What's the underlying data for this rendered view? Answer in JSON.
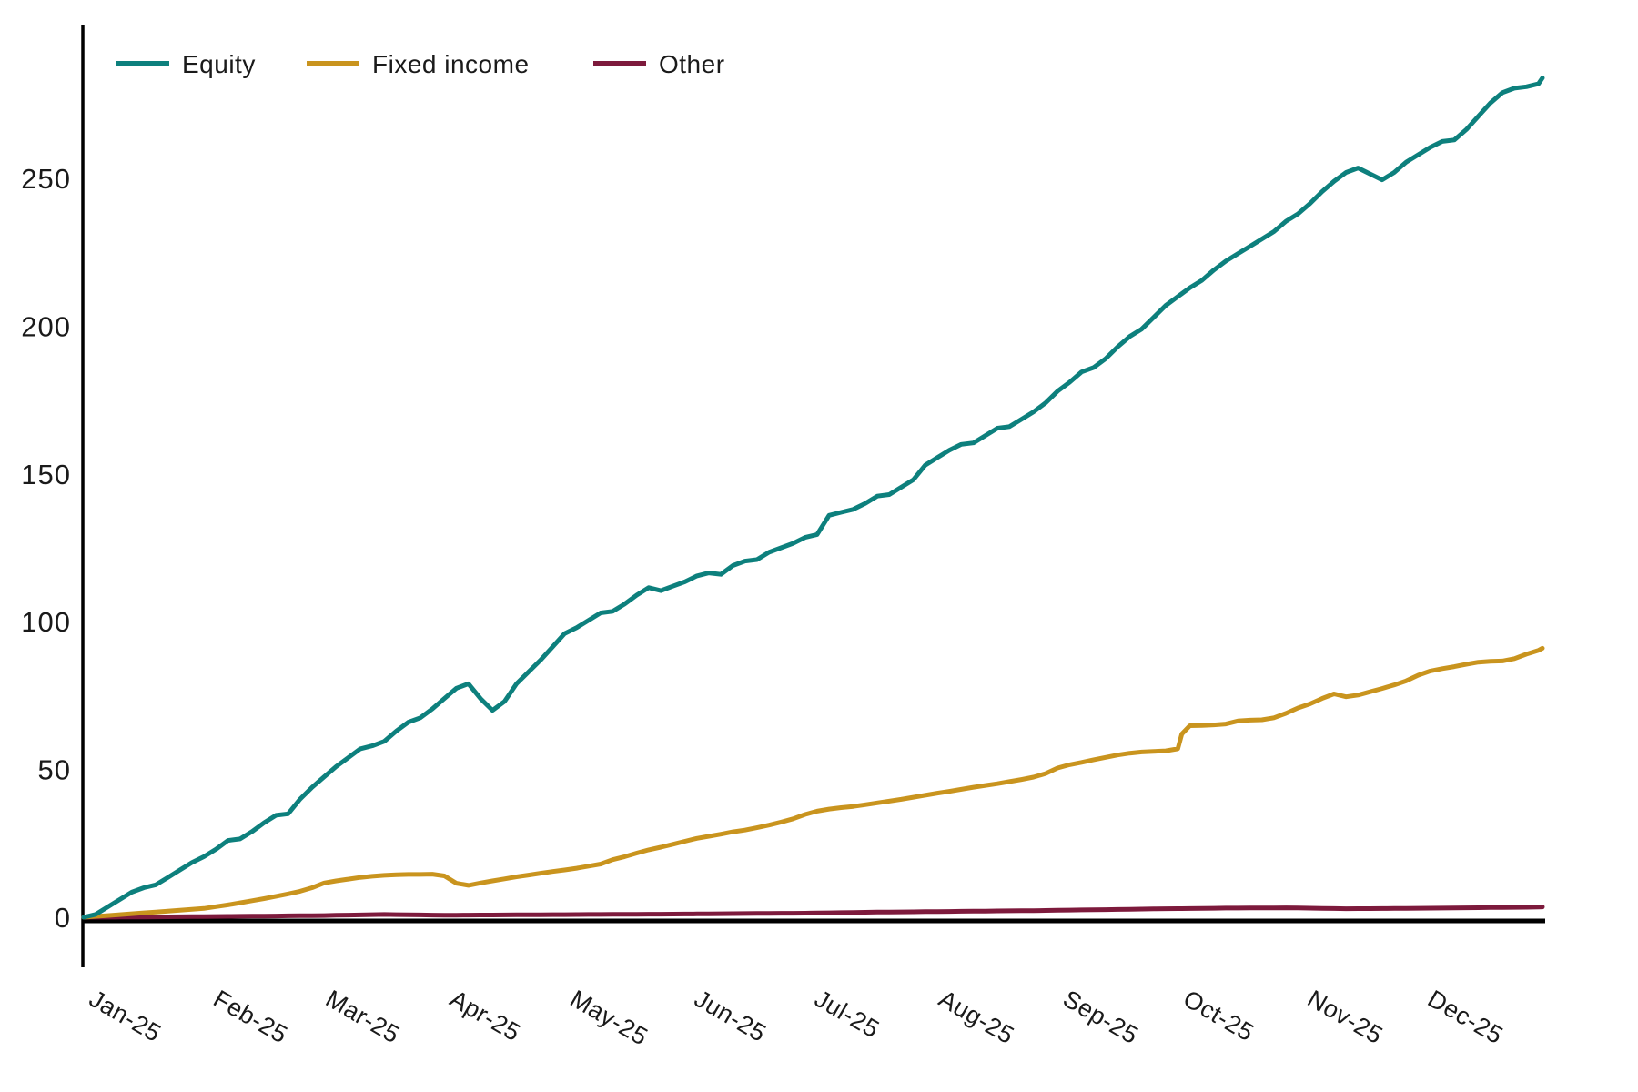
{
  "chart_data": {
    "type": "line",
    "title": "",
    "xlabel": "",
    "ylabel": "",
    "grid": false,
    "legend_position": "top-left",
    "ylim": [
      0,
      290
    ],
    "y_ticks": [
      0,
      50,
      100,
      150,
      200,
      250
    ],
    "x_tick_labels": [
      "Jan-25",
      "Feb-25",
      "Mar-25",
      "Apr-25",
      "May-25",
      "Jun-25",
      "Jul-25",
      "Aug-25",
      "Sep-25",
      "Oct-25",
      "Nov-25",
      "Dec-25"
    ],
    "x_unit": "day_of_year_2025",
    "month_start_days": [
      0,
      31,
      59,
      90,
      120,
      151,
      181,
      212,
      243,
      273,
      304,
      334
    ],
    "days": [
      0,
      3,
      6,
      9,
      12,
      15,
      18,
      21,
      24,
      27,
      30,
      33,
      36,
      39,
      42,
      45,
      48,
      51,
      54,
      57,
      60,
      63,
      66,
      69,
      72,
      75,
      78,
      81,
      84,
      87,
      90,
      93,
      96,
      99,
      102,
      105,
      108,
      111,
      114,
      117,
      120,
      123,
      126,
      129,
      132,
      135,
      138,
      141,
      144,
      147,
      150,
      153,
      156,
      159,
      162,
      165,
      168,
      171,
      174,
      177,
      180,
      183,
      186,
      189,
      192,
      195,
      198,
      201,
      204,
      207,
      210,
      213,
      216,
      219,
      222,
      225,
      228,
      231,
      234,
      237,
      240,
      243,
      246,
      249,
      252,
      255,
      258,
      261,
      264,
      267,
      270,
      273,
      274,
      276,
      279,
      282,
      285,
      288,
      291,
      294,
      297,
      300,
      303,
      306,
      309,
      312,
      315,
      318,
      321,
      324,
      327,
      330,
      333,
      336,
      339,
      342,
      345,
      348,
      351,
      354,
      357,
      360,
      363,
      364
    ],
    "series": [
      {
        "name": "Equity",
        "color": "#0d807d",
        "values": [
          0,
          1,
          3.5,
          6,
          8.5,
          10,
          11,
          13.5,
          16,
          18.5,
          20.5,
          23,
          26,
          26.5,
          29,
          32,
          34.5,
          35,
          40,
          44,
          47.5,
          51,
          54,
          57,
          58,
          59.5,
          63,
          66,
          67.5,
          70.5,
          74,
          77.5,
          79,
          74,
          70,
          73,
          79,
          83,
          87,
          91.5,
          96,
          98,
          100.5,
          103,
          103.5,
          106,
          109,
          111.5,
          110.5,
          112,
          113.5,
          115.5,
          116.5,
          116,
          119,
          120.5,
          121,
          123.5,
          125,
          126.5,
          128.5,
          129.5,
          136,
          137,
          138,
          140,
          142.5,
          143,
          145.5,
          148,
          153,
          155.5,
          158,
          160,
          160.5,
          163,
          165.5,
          166,
          168.5,
          171,
          174,
          178,
          181,
          184.5,
          186,
          189,
          193,
          196.5,
          199,
          203,
          207,
          210,
          211,
          213,
          215.5,
          219,
          222,
          224.5,
          227,
          229.5,
          232,
          235.5,
          238,
          241.5,
          245.5,
          249,
          252,
          253.5,
          251.5,
          249.5,
          252,
          255.5,
          258,
          260.5,
          262.5,
          263,
          266.5,
          271,
          275.5,
          279,
          280.5,
          281,
          282,
          284
        ]
      },
      {
        "name": "Fixed income",
        "color": "#c9941e",
        "values": [
          0,
          0.3,
          0.6,
          0.9,
          1.2,
          1.5,
          1.8,
          2.1,
          2.4,
          2.7,
          3,
          3.6,
          4.2,
          4.9,
          5.6,
          6.3,
          7.1,
          7.9,
          8.8,
          10,
          11.6,
          12.3,
          12.9,
          13.5,
          13.9,
          14.2,
          14.4,
          14.5,
          14.5,
          14.6,
          14,
          11.5,
          10.8,
          11.6,
          12.3,
          13,
          13.7,
          14.3,
          14.9,
          15.5,
          16,
          16.6,
          17.3,
          18,
          19.5,
          20.5,
          21.7,
          22.8,
          23.7,
          24.7,
          25.7,
          26.7,
          27.4,
          28.1,
          28.9,
          29.5,
          30.3,
          31.2,
          32.2,
          33.3,
          34.8,
          35.9,
          36.6,
          37.1,
          37.5,
          38.1,
          38.7,
          39.3,
          39.9,
          40.6,
          41.3,
          42,
          42.6,
          43.3,
          44,
          44.6,
          45.2,
          45.9,
          46.6,
          47.4,
          48.6,
          50.5,
          51.6,
          52.4,
          53.3,
          54.1,
          54.9,
          55.5,
          55.9,
          56.1,
          56.3,
          57,
          62,
          64.8,
          64.9,
          65.1,
          65.4,
          66.4,
          66.7,
          66.8,
          67.5,
          69,
          70.8,
          72.2,
          74,
          75.6,
          74.6,
          75.2,
          76.3,
          77.4,
          78.6,
          80,
          81.9,
          83.3,
          84.1,
          84.8,
          85.6,
          86.3,
          86.6,
          86.7,
          87.5,
          89,
          90.3,
          91
        ]
      },
      {
        "name": "Other",
        "color": "#7d1a3c",
        "values": [
          0,
          0.02,
          0.04,
          0.06,
          0.08,
          0.1,
          0.13,
          0.16,
          0.19,
          0.22,
          0.25,
          0.28,
          0.31,
          0.34,
          0.37,
          0.4,
          0.44,
          0.48,
          0.52,
          0.56,
          0.6,
          0.67,
          0.74,
          0.81,
          0.88,
          0.95,
          0.9,
          0.85,
          0.8,
          0.75,
          0.7,
          0.72,
          0.74,
          0.76,
          0.78,
          0.8,
          0.82,
          0.84,
          0.86,
          0.88,
          0.9,
          0.92,
          0.94,
          0.96,
          0.98,
          1,
          1.02,
          1.04,
          1.06,
          1.08,
          1.1,
          1.13,
          1.16,
          1.19,
          1.22,
          1.25,
          1.28,
          1.31,
          1.34,
          1.37,
          1.4,
          1.46,
          1.52,
          1.58,
          1.64,
          1.7,
          1.74,
          1.78,
          1.82,
          1.86,
          1.9,
          1.94,
          1.98,
          2.02,
          2.06,
          2.1,
          2.14,
          2.18,
          2.22,
          2.26,
          2.3,
          2.36,
          2.42,
          2.48,
          2.54,
          2.6,
          2.66,
          2.72,
          2.78,
          2.84,
          2.9,
          2.93,
          2.94,
          2.96,
          3,
          3.05,
          3.1,
          3.12,
          3.14,
          3.16,
          3.18,
          3.2,
          3.14,
          3.08,
          3.02,
          2.96,
          2.9,
          2.92,
          2.94,
          2.96,
          2.98,
          3,
          3.04,
          3.08,
          3.12,
          3.16,
          3.2,
          3.24,
          3.28,
          3.32,
          3.36,
          3.4,
          3.47,
          3.5
        ]
      }
    ],
    "axis_color": "#000000",
    "tick_label_color": "#1a1a1a"
  },
  "legend": {
    "items": [
      {
        "label": "Equity"
      },
      {
        "label": "Fixed income"
      },
      {
        "label": "Other"
      }
    ]
  }
}
